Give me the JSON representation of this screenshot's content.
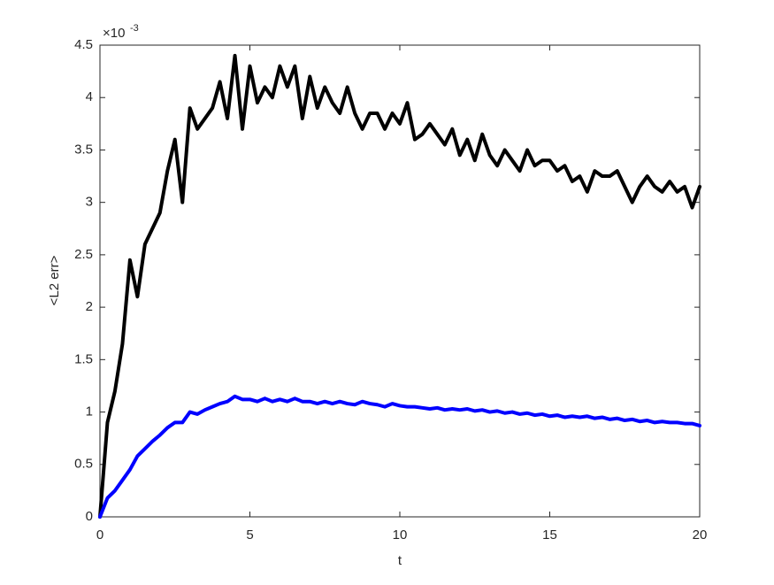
{
  "chart_data": {
    "type": "line",
    "xlabel": "t",
    "ylabel": "<L2 err>",
    "y_multiplier": {
      "base": "×10",
      "exponent": "-3"
    },
    "x": [
      0,
      0.25,
      0.5,
      0.75,
      1,
      1.25,
      1.5,
      1.75,
      2,
      2.25,
      2.5,
      2.75,
      3,
      3.25,
      3.5,
      3.75,
      4,
      4.25,
      4.5,
      4.75,
      5,
      5.25,
      5.5,
      5.75,
      6,
      6.25,
      6.5,
      6.75,
      7,
      7.25,
      7.5,
      7.75,
      8,
      8.25,
      8.5,
      8.75,
      9,
      9.25,
      9.5,
      9.75,
      10,
      10.25,
      10.5,
      10.75,
      11,
      11.25,
      11.5,
      11.75,
      12,
      12.25,
      12.5,
      12.75,
      13,
      13.25,
      13.5,
      13.75,
      14,
      14.25,
      14.5,
      14.75,
      15,
      15.25,
      15.5,
      15.75,
      16,
      16.25,
      16.5,
      16.75,
      17,
      17.25,
      17.5,
      17.75,
      18,
      18.25,
      18.5,
      18.75,
      19,
      19.25,
      19.5,
      19.75,
      20
    ],
    "series": [
      {
        "color": "#000000",
        "values": [
          0,
          0.9,
          1.2,
          1.65,
          2.45,
          2.1,
          2.6,
          2.75,
          2.9,
          3.3,
          3.6,
          3.0,
          3.9,
          3.7,
          3.8,
          3.9,
          4.15,
          3.8,
          4.4,
          3.7,
          4.3,
          3.95,
          4.1,
          4.0,
          4.3,
          4.1,
          4.3,
          3.8,
          4.2,
          3.9,
          4.1,
          3.95,
          3.85,
          4.1,
          3.85,
          3.7,
          3.85,
          3.85,
          3.7,
          3.85,
          3.75,
          3.95,
          3.6,
          3.65,
          3.75,
          3.65,
          3.55,
          3.7,
          3.45,
          3.6,
          3.4,
          3.65,
          3.45,
          3.35,
          3.5,
          3.4,
          3.3,
          3.5,
          3.35,
          3.4,
          3.4,
          3.3,
          3.35,
          3.2,
          3.25,
          3.1,
          3.3,
          3.25,
          3.25,
          3.3,
          3.15,
          3.0,
          3.15,
          3.25,
          3.15,
          3.1,
          3.2,
          3.1,
          3.15,
          2.95,
          3.15
        ]
      },
      {
        "color": "#0000ff",
        "values": [
          0,
          0.18,
          0.25,
          0.35,
          0.45,
          0.58,
          0.65,
          0.72,
          0.78,
          0.85,
          0.9,
          0.9,
          1.0,
          0.98,
          1.02,
          1.05,
          1.08,
          1.1,
          1.15,
          1.12,
          1.12,
          1.1,
          1.13,
          1.1,
          1.12,
          1.1,
          1.13,
          1.1,
          1.1,
          1.08,
          1.1,
          1.08,
          1.1,
          1.08,
          1.07,
          1.1,
          1.08,
          1.07,
          1.05,
          1.08,
          1.06,
          1.05,
          1.05,
          1.04,
          1.03,
          1.04,
          1.02,
          1.03,
          1.02,
          1.03,
          1.01,
          1.02,
          1.0,
          1.01,
          0.99,
          1.0,
          0.98,
          0.99,
          0.97,
          0.98,
          0.96,
          0.97,
          0.95,
          0.96,
          0.95,
          0.96,
          0.94,
          0.95,
          0.93,
          0.94,
          0.92,
          0.93,
          0.91,
          0.92,
          0.9,
          0.91,
          0.9,
          0.9,
          0.89,
          0.89,
          0.87
        ]
      }
    ],
    "xlim": [
      0,
      20
    ],
    "xticks": [
      0,
      5,
      10,
      15,
      20
    ],
    "ylim": [
      0,
      4.5
    ],
    "yticks": [
      0,
      0.5,
      1,
      1.5,
      2,
      2.5,
      3,
      3.5,
      4,
      4.5
    ]
  }
}
